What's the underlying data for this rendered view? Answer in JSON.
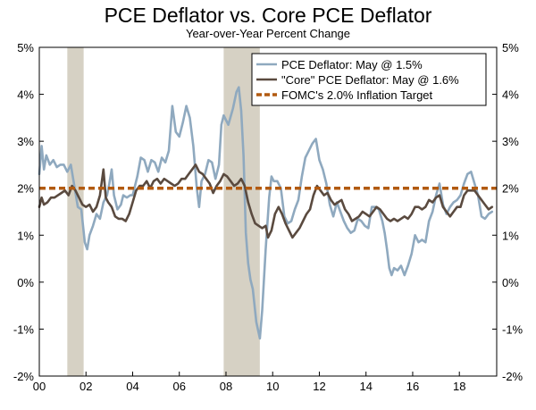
{
  "chart_data": {
    "type": "line",
    "title": "PCE Deflator vs. Core PCE Deflator",
    "subtitle": "Year-over-Year Percent Change",
    "xlabel": "",
    "ylabel": "",
    "xlim": [
      2000.0,
      2019.6
    ],
    "ylim": [
      -2,
      5
    ],
    "x_ticks": [
      {
        "value": 2000,
        "label": "00"
      },
      {
        "value": 2002,
        "label": "02"
      },
      {
        "value": 2004,
        "label": "04"
      },
      {
        "value": 2006,
        "label": "06"
      },
      {
        "value": 2008,
        "label": "08"
      },
      {
        "value": 2010,
        "label": "10"
      },
      {
        "value": 2012,
        "label": "12"
      },
      {
        "value": 2014,
        "label": "14"
      },
      {
        "value": 2016,
        "label": "16"
      },
      {
        "value": 2018,
        "label": "18"
      }
    ],
    "y_ticks": [
      {
        "value": 5,
        "label": "5%"
      },
      {
        "value": 4,
        "label": "4%"
      },
      {
        "value": 3,
        "label": "3%"
      },
      {
        "value": 2,
        "label": "2%"
      },
      {
        "value": 1,
        "label": "1%"
      },
      {
        "value": 0,
        "label": "0%"
      },
      {
        "value": -1,
        "label": "-1%"
      },
      {
        "value": -2,
        "label": "-2%"
      }
    ],
    "recessions": [
      [
        2001.2,
        2001.9
      ],
      [
        2007.9,
        2009.45
      ]
    ],
    "legend_position": "top-right",
    "series": [
      {
        "name": "PCE Deflator: May @ 1.5%",
        "color": "#8fa9bf",
        "style": "solid",
        "points": [
          [
            2000.0,
            2.3
          ],
          [
            2000.1,
            2.9
          ],
          [
            2000.2,
            2.4
          ],
          [
            2000.3,
            2.7
          ],
          [
            2000.45,
            2.5
          ],
          [
            2000.6,
            2.6
          ],
          [
            2000.75,
            2.45
          ],
          [
            2000.9,
            2.5
          ],
          [
            2001.05,
            2.5
          ],
          [
            2001.2,
            2.35
          ],
          [
            2001.35,
            2.5
          ],
          [
            2001.5,
            2.05
          ],
          [
            2001.65,
            1.6
          ],
          [
            2001.8,
            1.55
          ],
          [
            2001.95,
            0.85
          ],
          [
            2002.05,
            0.7
          ],
          [
            2002.15,
            1.0
          ],
          [
            2002.3,
            1.2
          ],
          [
            2002.45,
            1.45
          ],
          [
            2002.6,
            1.35
          ],
          [
            2002.75,
            1.7
          ],
          [
            2002.9,
            1.85
          ],
          [
            2003.0,
            2.1
          ],
          [
            2003.1,
            2.4
          ],
          [
            2003.2,
            1.85
          ],
          [
            2003.35,
            1.55
          ],
          [
            2003.5,
            1.65
          ],
          [
            2003.6,
            1.85
          ],
          [
            2003.75,
            1.8
          ],
          [
            2003.9,
            1.85
          ],
          [
            2004.0,
            1.85
          ],
          [
            2004.1,
            2.05
          ],
          [
            2004.2,
            2.25
          ],
          [
            2004.35,
            2.65
          ],
          [
            2004.5,
            2.6
          ],
          [
            2004.65,
            2.35
          ],
          [
            2004.8,
            2.6
          ],
          [
            2004.95,
            2.55
          ],
          [
            2005.1,
            2.35
          ],
          [
            2005.25,
            2.65
          ],
          [
            2005.4,
            2.55
          ],
          [
            2005.55,
            2.8
          ],
          [
            2005.7,
            3.75
          ],
          [
            2005.85,
            3.2
          ],
          [
            2006.0,
            3.1
          ],
          [
            2006.15,
            3.4
          ],
          [
            2006.3,
            3.75
          ],
          [
            2006.45,
            3.5
          ],
          [
            2006.6,
            2.9
          ],
          [
            2006.75,
            2.0
          ],
          [
            2006.85,
            1.6
          ],
          [
            2006.95,
            2.15
          ],
          [
            2007.1,
            2.3
          ],
          [
            2007.25,
            2.6
          ],
          [
            2007.4,
            2.55
          ],
          [
            2007.55,
            2.2
          ],
          [
            2007.7,
            2.5
          ],
          [
            2007.8,
            3.35
          ],
          [
            2007.9,
            3.55
          ],
          [
            2008.1,
            3.35
          ],
          [
            2008.3,
            3.7
          ],
          [
            2008.45,
            4.05
          ],
          [
            2008.55,
            4.15
          ],
          [
            2008.65,
            3.65
          ],
          [
            2008.75,
            2.7
          ],
          [
            2008.85,
            1.05
          ],
          [
            2008.95,
            0.4
          ],
          [
            2009.05,
            0.05
          ],
          [
            2009.15,
            -0.15
          ],
          [
            2009.3,
            -0.85
          ],
          [
            2009.45,
            -1.2
          ],
          [
            2009.55,
            -0.6
          ],
          [
            2009.7,
            0.7
          ],
          [
            2009.85,
            1.8
          ],
          [
            2009.95,
            2.25
          ],
          [
            2010.05,
            2.15
          ],
          [
            2010.2,
            2.15
          ],
          [
            2010.35,
            2.0
          ],
          [
            2010.5,
            1.4
          ],
          [
            2010.65,
            1.25
          ],
          [
            2010.8,
            1.3
          ],
          [
            2010.95,
            1.55
          ],
          [
            2011.1,
            1.75
          ],
          [
            2011.25,
            2.25
          ],
          [
            2011.4,
            2.65
          ],
          [
            2011.55,
            2.8
          ],
          [
            2011.7,
            2.95
          ],
          [
            2011.85,
            3.05
          ],
          [
            2012.0,
            2.6
          ],
          [
            2012.15,
            2.4
          ],
          [
            2012.3,
            2.1
          ],
          [
            2012.45,
            1.65
          ],
          [
            2012.6,
            1.4
          ],
          [
            2012.75,
            1.7
          ],
          [
            2012.9,
            1.5
          ],
          [
            2013.05,
            1.3
          ],
          [
            2013.2,
            1.15
          ],
          [
            2013.35,
            1.05
          ],
          [
            2013.5,
            1.1
          ],
          [
            2013.65,
            1.35
          ],
          [
            2013.8,
            1.3
          ],
          [
            2013.95,
            1.2
          ],
          [
            2014.1,
            1.15
          ],
          [
            2014.25,
            1.6
          ],
          [
            2014.4,
            1.6
          ],
          [
            2014.55,
            1.55
          ],
          [
            2014.7,
            1.3
          ],
          [
            2014.8,
            1.05
          ],
          [
            2014.9,
            0.7
          ],
          [
            2015.0,
            0.3
          ],
          [
            2015.1,
            0.15
          ],
          [
            2015.2,
            0.3
          ],
          [
            2015.35,
            0.25
          ],
          [
            2015.5,
            0.35
          ],
          [
            2015.65,
            0.15
          ],
          [
            2015.8,
            0.35
          ],
          [
            2015.95,
            0.6
          ],
          [
            2016.1,
            1.0
          ],
          [
            2016.25,
            0.85
          ],
          [
            2016.4,
            0.9
          ],
          [
            2016.55,
            0.85
          ],
          [
            2016.7,
            1.3
          ],
          [
            2016.85,
            1.5
          ],
          [
            2017.0,
            1.85
          ],
          [
            2017.15,
            2.1
          ],
          [
            2017.3,
            1.65
          ],
          [
            2017.45,
            1.45
          ],
          [
            2017.6,
            1.6
          ],
          [
            2017.75,
            1.7
          ],
          [
            2017.9,
            1.75
          ],
          [
            2018.05,
            1.85
          ],
          [
            2018.2,
            2.1
          ],
          [
            2018.35,
            2.3
          ],
          [
            2018.5,
            2.35
          ],
          [
            2018.65,
            2.1
          ],
          [
            2018.8,
            1.85
          ],
          [
            2018.95,
            1.4
          ],
          [
            2019.1,
            1.35
          ],
          [
            2019.25,
            1.45
          ],
          [
            2019.4,
            1.5
          ]
        ]
      },
      {
        "name": "\"Core\" PCE Deflator: May @ 1.6%",
        "color": "#5a4a3f",
        "style": "solid",
        "points": [
          [
            2000.0,
            1.6
          ],
          [
            2000.1,
            1.8
          ],
          [
            2000.2,
            1.65
          ],
          [
            2000.35,
            1.7
          ],
          [
            2000.5,
            1.8
          ],
          [
            2000.65,
            1.8
          ],
          [
            2000.8,
            1.85
          ],
          [
            2000.95,
            1.9
          ],
          [
            2001.1,
            1.95
          ],
          [
            2001.25,
            1.85
          ],
          [
            2001.4,
            2.05
          ],
          [
            2001.55,
            1.95
          ],
          [
            2001.7,
            1.8
          ],
          [
            2001.85,
            1.65
          ],
          [
            2002.0,
            1.6
          ],
          [
            2002.15,
            1.65
          ],
          [
            2002.3,
            1.5
          ],
          [
            2002.45,
            1.6
          ],
          [
            2002.6,
            1.85
          ],
          [
            2002.75,
            2.4
          ],
          [
            2002.85,
            1.8
          ],
          [
            2002.95,
            1.7
          ],
          [
            2003.1,
            1.6
          ],
          [
            2003.25,
            1.4
          ],
          [
            2003.4,
            1.35
          ],
          [
            2003.55,
            1.35
          ],
          [
            2003.7,
            1.3
          ],
          [
            2003.85,
            1.45
          ],
          [
            2004.0,
            1.7
          ],
          [
            2004.15,
            1.95
          ],
          [
            2004.3,
            2.05
          ],
          [
            2004.45,
            2.05
          ],
          [
            2004.6,
            2.15
          ],
          [
            2004.75,
            2.0
          ],
          [
            2004.9,
            2.15
          ],
          [
            2005.05,
            2.2
          ],
          [
            2005.2,
            2.1
          ],
          [
            2005.35,
            2.2
          ],
          [
            2005.5,
            2.15
          ],
          [
            2005.65,
            2.1
          ],
          [
            2005.8,
            2.05
          ],
          [
            2005.95,
            2.1
          ],
          [
            2006.1,
            2.2
          ],
          [
            2006.25,
            2.2
          ],
          [
            2006.4,
            2.3
          ],
          [
            2006.55,
            2.4
          ],
          [
            2006.7,
            2.5
          ],
          [
            2006.85,
            2.35
          ],
          [
            2007.0,
            2.3
          ],
          [
            2007.15,
            2.2
          ],
          [
            2007.3,
            2.1
          ],
          [
            2007.45,
            1.9
          ],
          [
            2007.6,
            2.05
          ],
          [
            2007.75,
            2.15
          ],
          [
            2007.9,
            2.3
          ],
          [
            2008.05,
            2.25
          ],
          [
            2008.2,
            2.15
          ],
          [
            2008.35,
            2.05
          ],
          [
            2008.5,
            2.1
          ],
          [
            2008.65,
            2.2
          ],
          [
            2008.8,
            2.05
          ],
          [
            2008.95,
            1.7
          ],
          [
            2009.1,
            1.45
          ],
          [
            2009.25,
            1.25
          ],
          [
            2009.4,
            1.2
          ],
          [
            2009.55,
            1.15
          ],
          [
            2009.7,
            1.2
          ],
          [
            2009.8,
            0.95
          ],
          [
            2009.95,
            1.1
          ],
          [
            2010.1,
            1.45
          ],
          [
            2010.25,
            1.6
          ],
          [
            2010.4,
            1.45
          ],
          [
            2010.55,
            1.25
          ],
          [
            2010.7,
            1.1
          ],
          [
            2010.85,
            0.95
          ],
          [
            2011.0,
            1.05
          ],
          [
            2011.15,
            1.15
          ],
          [
            2011.3,
            1.3
          ],
          [
            2011.45,
            1.45
          ],
          [
            2011.6,
            1.55
          ],
          [
            2011.75,
            1.85
          ],
          [
            2011.9,
            2.05
          ],
          [
            2012.05,
            1.95
          ],
          [
            2012.2,
            1.85
          ],
          [
            2012.35,
            1.9
          ],
          [
            2012.5,
            1.75
          ],
          [
            2012.65,
            1.65
          ],
          [
            2012.8,
            1.7
          ],
          [
            2012.95,
            1.75
          ],
          [
            2013.1,
            1.55
          ],
          [
            2013.25,
            1.45
          ],
          [
            2013.4,
            1.3
          ],
          [
            2013.55,
            1.35
          ],
          [
            2013.7,
            1.4
          ],
          [
            2013.85,
            1.5
          ],
          [
            2014.0,
            1.45
          ],
          [
            2014.15,
            1.4
          ],
          [
            2014.3,
            1.5
          ],
          [
            2014.45,
            1.6
          ],
          [
            2014.6,
            1.55
          ],
          [
            2014.75,
            1.45
          ],
          [
            2014.9,
            1.35
          ],
          [
            2015.05,
            1.3
          ],
          [
            2015.2,
            1.35
          ],
          [
            2015.35,
            1.3
          ],
          [
            2015.5,
            1.35
          ],
          [
            2015.65,
            1.4
          ],
          [
            2015.8,
            1.35
          ],
          [
            2015.95,
            1.45
          ],
          [
            2016.1,
            1.6
          ],
          [
            2016.25,
            1.6
          ],
          [
            2016.4,
            1.55
          ],
          [
            2016.55,
            1.6
          ],
          [
            2016.7,
            1.75
          ],
          [
            2016.85,
            1.7
          ],
          [
            2017.0,
            1.8
          ],
          [
            2017.15,
            1.85
          ],
          [
            2017.3,
            1.6
          ],
          [
            2017.45,
            1.5
          ],
          [
            2017.6,
            1.4
          ],
          [
            2017.75,
            1.5
          ],
          [
            2017.9,
            1.6
          ],
          [
            2018.05,
            1.6
          ],
          [
            2018.2,
            1.85
          ],
          [
            2018.35,
            1.95
          ],
          [
            2018.5,
            1.95
          ],
          [
            2018.65,
            1.95
          ],
          [
            2018.8,
            1.85
          ],
          [
            2018.95,
            1.75
          ],
          [
            2019.1,
            1.65
          ],
          [
            2019.25,
            1.55
          ],
          [
            2019.4,
            1.6
          ]
        ]
      },
      {
        "name": "FOMC's 2.0% Inflation Target",
        "color": "#b25a10",
        "style": "dashed",
        "points": [
          [
            2000.0,
            2.0
          ],
          [
            2019.6,
            2.0
          ]
        ]
      }
    ]
  }
}
